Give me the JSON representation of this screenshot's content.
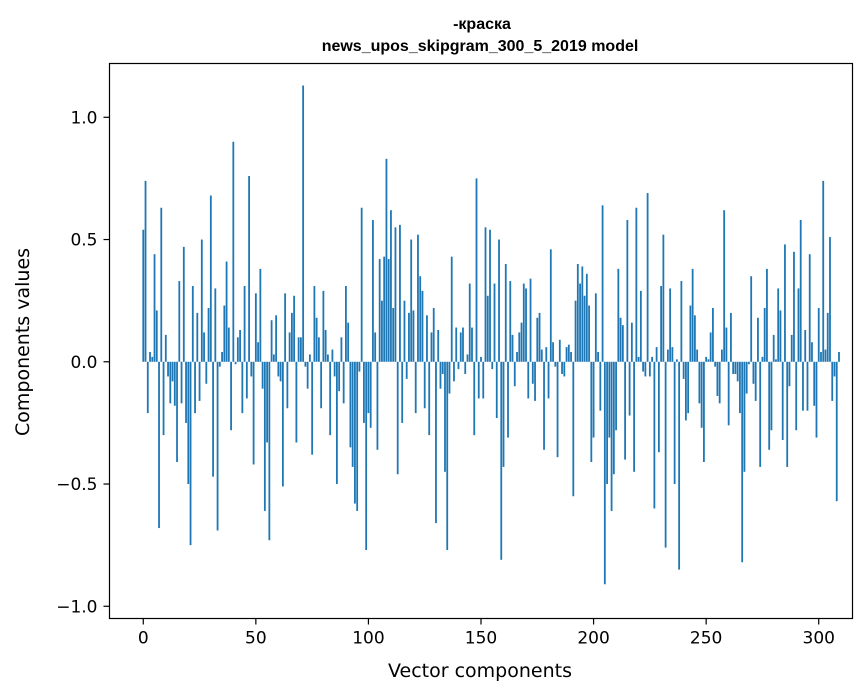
{
  "chart_data": {
    "type": "bar",
    "title_line1": "-краска",
    "title_line2": "news_upos_skipgram_300_5_2019 model",
    "xlabel": "Vector components",
    "ylabel": "Components values",
    "xlim": [
      -15,
      315
    ],
    "ylim": [
      -1.05,
      1.22
    ],
    "xticks": [
      0,
      50,
      100,
      150,
      200,
      250,
      300
    ],
    "xtick_labels": [
      "0",
      "50",
      "100",
      "150",
      "200",
      "250",
      "300"
    ],
    "yticks": [
      -1.0,
      -0.5,
      0.0,
      0.5,
      1.0
    ],
    "ytick_labels": [
      "−1.0",
      "−0.5",
      "0.0",
      "0.5",
      "1.0"
    ],
    "series_color": "#1f77b4",
    "values": [
      0.54,
      0.74,
      -0.21,
      0.04,
      0.02,
      0.44,
      0.21,
      -0.68,
      0.63,
      -0.3,
      0.11,
      -0.06,
      -0.17,
      -0.08,
      -0.18,
      -0.41,
      0.33,
      -0.17,
      0.47,
      -0.25,
      -0.5,
      -0.75,
      0.31,
      -0.21,
      0.2,
      -0.16,
      0.5,
      0.12,
      -0.09,
      0.22,
      0.68,
      -0.47,
      0.3,
      -0.69,
      -0.02,
      0.04,
      0.23,
      0.41,
      0.14,
      -0.28,
      0.9,
      -0.01,
      0.1,
      0.13,
      -0.21,
      0.31,
      -0.15,
      0.76,
      -0.06,
      -0.42,
      0.28,
      0.08,
      0.38,
      -0.11,
      -0.61,
      -0.33,
      -0.73,
      0.17,
      0.03,
      0.19,
      -0.06,
      -0.08,
      -0.51,
      0.28,
      -0.19,
      0.12,
      0.2,
      0.27,
      -0.33,
      0.1,
      0.1,
      1.13,
      -0.02,
      -0.11,
      0.03,
      -0.38,
      0.31,
      0.18,
      0.1,
      -0.19,
      0.29,
      0.13,
      0.03,
      -0.3,
      0.05,
      -0.06,
      -0.5,
      -0.12,
      0.1,
      -0.17,
      0.31,
      0.16,
      -0.35,
      -0.43,
      -0.58,
      -0.61,
      -0.04,
      0.63,
      -0.25,
      -0.77,
      -0.21,
      -0.27,
      0.58,
      0.12,
      -0.36,
      0.42,
      0.25,
      0.43,
      0.83,
      0.42,
      0.62,
      0.22,
      0.55,
      -0.46,
      0.56,
      -0.25,
      0.25,
      -0.07,
      0.2,
      0.5,
      0.21,
      -0.21,
      0.52,
      0.35,
      0.29,
      -0.19,
      0.19,
      -0.3,
      0.12,
      0.22,
      -0.66,
      0.13,
      -0.11,
      -0.05,
      -0.45,
      -0.77,
      -0.13,
      0.43,
      -0.08,
      0.14,
      -0.03,
      0.12,
      0.14,
      -0.05,
      0.03,
      0.32,
      0.14,
      -0.3,
      0.75,
      -0.15,
      0.02,
      -0.15,
      0.55,
      0.27,
      0.54,
      -0.03,
      0.32,
      -0.23,
      0.5,
      -0.81,
      -0.43,
      0.4,
      -0.31,
      0.33,
      0.11,
      -0.1,
      0.04,
      0.12,
      0.16,
      0.32,
      0.3,
      -0.15,
      0.34,
      -0.09,
      -0.16,
      0.18,
      0.2,
      0.05,
      -0.36,
      0.06,
      -0.15,
      0.46,
      0.08,
      -0.02,
      -0.39,
      0.09,
      -0.05,
      -0.06,
      0.06,
      0.07,
      0.04,
      -0.55,
      0.25,
      0.4,
      0.32,
      0.39,
      0.27,
      0.36,
      0.23,
      -0.41,
      -0.31,
      0.28,
      0.04,
      -0.2,
      0.64,
      -0.91,
      -0.5,
      -0.31,
      -0.61,
      -0.46,
      -0.28,
      0.38,
      0.18,
      0.15,
      -0.4,
      0.58,
      -0.22,
      0.16,
      -0.45,
      0.63,
      0.02,
      0.29,
      -0.04,
      -0.06,
      0.69,
      -0.06,
      0.02,
      -0.6,
      0.06,
      -0.37,
      0.31,
      0.52,
      -0.76,
      0.05,
      0.3,
      0.06,
      -0.5,
      0.01,
      -0.85,
      0.33,
      -0.07,
      -0.24,
      -0.21,
      0.23,
      0.38,
      0.19,
      0.05,
      -0.17,
      -0.27,
      -0.41,
      0.02,
      0.01,
      0.12,
      0.22,
      -0.02,
      -0.14,
      -0.17,
      0.05,
      0.62,
      0.14,
      -0.26,
      0.2,
      -0.05,
      -0.05,
      -0.08,
      -0.21,
      -0.82,
      -0.45,
      -0.13,
      -0.01,
      0.35,
      -0.09,
      -0.16,
      0.18,
      -0.43,
      0.02,
      0.22,
      0.38,
      -0.36,
      -0.28,
      0.11,
      0.01,
      0.3,
      0.21,
      -0.32,
      0.48,
      -0.43,
      -0.1,
      0.11,
      0.45,
      -0.28,
      0.3,
      0.58,
      -0.2,
      0.13,
      -0.2,
      0.44,
      0.08,
      -0.18,
      -0.31,
      0.22,
      0.04,
      0.74,
      0.05,
      0.2,
      0.51,
      -0.16,
      -0.06,
      -0.57,
      0.04
    ]
  }
}
